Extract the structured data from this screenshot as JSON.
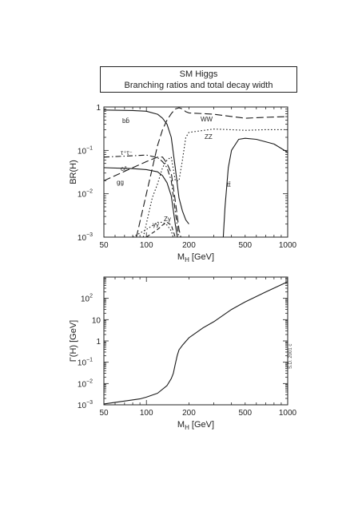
{
  "title_box": {
    "line1": "SM Higgs",
    "line2": "Branching ratios and total decay width"
  },
  "stamp": "S.D. 2001 c",
  "chart_data": [
    {
      "type": "line",
      "title": "",
      "xlabel": "M_H [GeV]",
      "ylabel": "BR(H)",
      "xscale": "log",
      "yscale": "log",
      "xlim": [
        50,
        1000
      ],
      "ylim": [
        0.001,
        1
      ],
      "xticks": [
        {
          "v": 50,
          "label": "50"
        },
        {
          "v": 100,
          "label": "100"
        },
        {
          "v": 200,
          "label": "200"
        },
        {
          "v": 500,
          "label": "500"
        },
        {
          "v": 1000,
          "label": "1000"
        }
      ],
      "yticks": [
        {
          "v": 1,
          "label": "1"
        },
        {
          "v": 0.1,
          "label": "10",
          "exp": "−1"
        },
        {
          "v": 0.01,
          "label": "10",
          "exp": "−2"
        },
        {
          "v": 0.001,
          "label": "10",
          "exp": "−3"
        }
      ],
      "grid": false,
      "series": [
        {
          "name": "bb̄",
          "dash": "solid",
          "points": [
            [
              50,
              0.85
            ],
            [
              80,
              0.83
            ],
            [
              100,
              0.8
            ],
            [
              120,
              0.68
            ],
            [
              130,
              0.55
            ],
            [
              140,
              0.4
            ],
            [
              150,
              0.2
            ],
            [
              160,
              0.04
            ],
            [
              170,
              0.008
            ],
            [
              180,
              0.004
            ],
            [
              190,
              0.0025
            ],
            [
              200,
              0.002
            ]
          ]
        },
        {
          "name": "τ⁺τ⁻",
          "dash": "dotdash",
          "points": [
            [
              50,
              0.07
            ],
            [
              80,
              0.075
            ],
            [
              100,
              0.078
            ],
            [
              120,
              0.068
            ],
            [
              130,
              0.055
            ],
            [
              140,
              0.04
            ],
            [
              150,
              0.02
            ],
            [
              160,
              0.004
            ],
            [
              170,
              0.0009
            ]
          ]
        },
        {
          "name": "cc̄",
          "dash": "solid",
          "points": [
            [
              50,
              0.04
            ],
            [
              80,
              0.038
            ],
            [
              100,
              0.036
            ],
            [
              120,
              0.032
            ],
            [
              130,
              0.026
            ],
            [
              140,
              0.018
            ],
            [
              150,
              0.009
            ],
            [
              160,
              0.002
            ],
            [
              170,
              0.0006
            ]
          ]
        },
        {
          "name": "gg",
          "dash": "longdash",
          "points": [
            [
              50,
              0.02
            ],
            [
              80,
              0.04
            ],
            [
              100,
              0.055
            ],
            [
              120,
              0.07
            ],
            [
              130,
              0.07
            ],
            [
              140,
              0.05
            ],
            [
              150,
              0.03
            ],
            [
              160,
              0.007
            ],
            [
              170,
              0.0015
            ],
            [
              180,
              0.0007
            ]
          ]
        },
        {
          "name": "WW",
          "dash": "longdash",
          "points": [
            [
              85,
              0.001
            ],
            [
              100,
              0.01
            ],
            [
              120,
              0.13
            ],
            [
              130,
              0.3
            ],
            [
              140,
              0.5
            ],
            [
              150,
              0.7
            ],
            [
              160,
              0.9
            ],
            [
              170,
              0.96
            ],
            [
              180,
              0.9
            ],
            [
              190,
              0.78
            ],
            [
              200,
              0.73
            ],
            [
              300,
              0.68
            ],
            [
              500,
              0.55
            ],
            [
              700,
              0.58
            ],
            [
              1000,
              0.6
            ]
          ]
        },
        {
          "name": "ZZ",
          "dash": "dotted",
          "points": [
            [
              95,
              0.001
            ],
            [
              110,
              0.008
            ],
            [
              120,
              0.017
            ],
            [
              130,
              0.04
            ],
            [
              140,
              0.06
            ],
            [
              150,
              0.07
            ],
            [
              160,
              0.02
            ],
            [
              170,
              0.02
            ],
            [
              180,
              0.06
            ],
            [
              190,
              0.2
            ],
            [
              200,
              0.26
            ],
            [
              300,
              0.31
            ],
            [
              500,
              0.29
            ],
            [
              700,
              0.3
            ],
            [
              1000,
              0.3
            ]
          ]
        },
        {
          "name": "tt̄",
          "dash": "solid",
          "points": [
            [
              350,
              0.001
            ],
            [
              360,
              0.005
            ],
            [
              380,
              0.04
            ],
            [
              400,
              0.1
            ],
            [
              450,
              0.18
            ],
            [
              500,
              0.19
            ],
            [
              600,
              0.18
            ],
            [
              800,
              0.14
            ],
            [
              1000,
              0.09
            ]
          ]
        },
        {
          "name": "γγ",
          "dash": "dotted",
          "points": [
            [
              80,
              0.001
            ],
            [
              100,
              0.0015
            ],
            [
              120,
              0.0022
            ],
            [
              130,
              0.0022
            ],
            [
              140,
              0.0019
            ],
            [
              150,
              0.0014
            ],
            [
              160,
              0.0007
            ]
          ]
        },
        {
          "name": "Zγ",
          "dash": "dashed",
          "points": [
            [
              100,
              0.001
            ],
            [
              120,
              0.0015
            ],
            [
              130,
              0.0019
            ],
            [
              140,
              0.0022
            ],
            [
              150,
              0.0019
            ],
            [
              160,
              0.001
            ]
          ]
        }
      ]
    },
    {
      "type": "line",
      "title": "",
      "xlabel": "M_H [GeV]",
      "ylabel": "Γ(H) [GeV]",
      "xscale": "log",
      "yscale": "log",
      "xlim": [
        50,
        1000
      ],
      "ylim": [
        0.001,
        1000
      ],
      "xticks": [
        {
          "v": 50,
          "label": "50"
        },
        {
          "v": 100,
          "label": "100"
        },
        {
          "v": 200,
          "label": "200"
        },
        {
          "v": 500,
          "label": "500"
        },
        {
          "v": 1000,
          "label": "1000"
        }
      ],
      "yticks": [
        {
          "v": 100,
          "label": "10",
          "exp": "2"
        },
        {
          "v": 10,
          "label": "10"
        },
        {
          "v": 1,
          "label": "1"
        },
        {
          "v": 0.1,
          "label": "10",
          "exp": "−1"
        },
        {
          "v": 0.01,
          "label": "10",
          "exp": "−2"
        },
        {
          "v": 0.001,
          "label": "10",
          "exp": "−3"
        }
      ],
      "grid": false,
      "series": [
        {
          "name": "",
          "dash": "solid",
          "points": [
            [
              50,
              0.0011
            ],
            [
              70,
              0.0015
            ],
            [
              90,
              0.0019
            ],
            [
              100,
              0.0023
            ],
            [
              120,
              0.0035
            ],
            [
              140,
              0.008
            ],
            [
              150,
              0.017
            ],
            [
              155,
              0.03
            ],
            [
              160,
              0.08
            ],
            [
              165,
              0.2
            ],
            [
              170,
              0.38
            ],
            [
              180,
              0.63
            ],
            [
              200,
              1.4
            ],
            [
              250,
              4
            ],
            [
              300,
              8
            ],
            [
              400,
              30
            ],
            [
              500,
              68
            ],
            [
              700,
              200
            ],
            [
              1000,
              600
            ]
          ]
        }
      ]
    }
  ]
}
